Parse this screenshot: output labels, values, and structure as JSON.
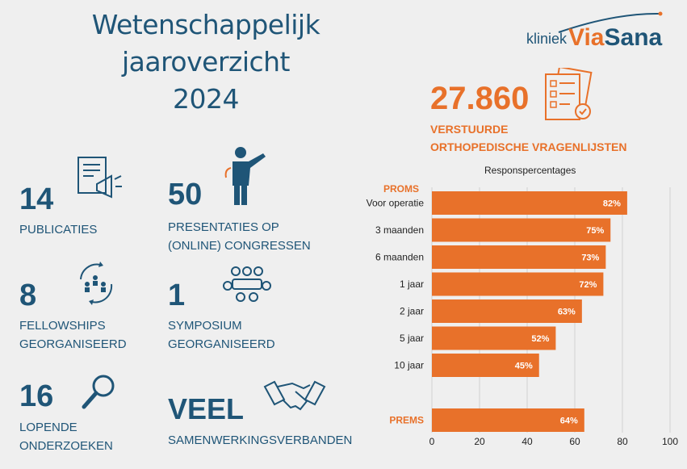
{
  "header": {
    "title_line1": "Wetenschappelijk jaaroverzicht",
    "title_line2": "2024"
  },
  "logo": {
    "prefix": "kliniek",
    "name_part1": "Via",
    "name_part2": "Sana"
  },
  "stats": [
    {
      "number": "14",
      "label_lines": [
        "PUBLICATIES"
      ],
      "icon": "document-megaphone-icon"
    },
    {
      "number": "50",
      "label_lines": [
        "PRESENTATIES OP",
        "(ONLINE) CONGRESSEN"
      ],
      "icon": "presenter-icon"
    },
    {
      "number": "8",
      "label_lines": [
        "FELLOWSHIPS",
        "GEORGANISEERD"
      ],
      "icon": "team-cycle-icon"
    },
    {
      "number": "1",
      "label_lines": [
        "SYMPOSIUM",
        "GEORGANISEERD"
      ],
      "icon": "meeting-table-icon"
    },
    {
      "number": "16",
      "label_lines": [
        "LOPENDE",
        "ONDERZOEKEN"
      ],
      "icon": "magnifier-icon"
    },
    {
      "number": "VEEL",
      "label_lines": [
        "SAMENWERKINGSVERBANDEN"
      ],
      "icon": "handshake-icon"
    }
  ],
  "questionnaires": {
    "number": "27.860",
    "label_line1": "VERSTUURDE",
    "label_line2": "ORTHOPEDISCHE VRAGENLIJSTEN",
    "icon": "questionnaire-icon"
  },
  "colors": {
    "accent": "#e8712a",
    "primary": "#1f5577",
    "background": "#efefef"
  },
  "chart_data": {
    "type": "bar",
    "orientation": "horizontal",
    "title": "Responspercentages",
    "groups": [
      {
        "name": "PROMS",
        "categories": [
          "Voor operatie",
          "3 maanden",
          "6 maanden",
          "1 jaar",
          "2 jaar",
          "5 jaar",
          "10 jaar"
        ],
        "values": [
          82,
          75,
          73,
          72,
          63,
          52,
          45
        ]
      },
      {
        "name": "PREMS",
        "categories": [
          ""
        ],
        "values": [
          64
        ]
      }
    ],
    "value_labels": [
      "82%",
      "75%",
      "73%",
      "72%",
      "63%",
      "52%",
      "45%",
      "64%"
    ],
    "xlim": [
      0,
      100
    ],
    "xticks": [
      0,
      20,
      40,
      60,
      80,
      100
    ],
    "grid": true,
    "bar_color": "#e8712a"
  }
}
